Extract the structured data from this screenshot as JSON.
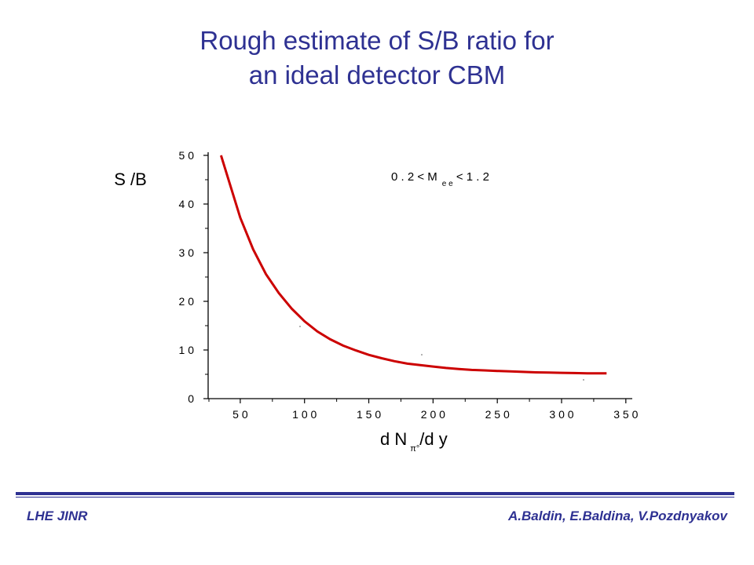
{
  "slide": {
    "title_line1": "Rough estimate of S/B ratio for",
    "title_line2": "an ideal detector CBM",
    "footer_left": "LHE JINR",
    "footer_right": "A.Baldin, E.Baldina, V.Pozdnyakov"
  },
  "colors": {
    "title": "#2e3192",
    "curve": "#cc0000",
    "axis": "#000000"
  },
  "chart_data": {
    "type": "line",
    "title": "",
    "annotation": {
      "text": "0 . 2 < M",
      "subscript": "e e",
      "suffix": " < 1 . 2"
    },
    "ylabel": "S /B",
    "xlabel": {
      "main": "d N",
      "subscript": "π°",
      "suffix": "/d y"
    },
    "xlim": [
      25,
      355
    ],
    "ylim": [
      0,
      50
    ],
    "x_ticks": [
      50,
      100,
      150,
      200,
      250,
      300,
      350
    ],
    "x_tick_labels": [
      "5 0",
      "1 0 0",
      "1 5 0",
      "2 0 0",
      "2 5 0",
      "3 0 0",
      "3 5 0"
    ],
    "y_ticks": [
      0,
      10,
      20,
      30,
      40,
      50
    ],
    "y_tick_labels": [
      "0",
      "1 0",
      "2 0",
      "3 0",
      "4 0",
      "5 0"
    ],
    "grid": false,
    "series": [
      {
        "x": [
          35,
          50,
          60,
          70,
          80,
          90,
          100,
          110,
          120,
          130,
          140,
          150,
          160,
          170,
          180,
          190,
          200,
          210,
          220,
          230,
          240,
          250,
          260,
          270,
          280,
          290,
          300,
          310,
          320,
          335
        ],
        "values": [
          50.0,
          37.2,
          30.7,
          25.6,
          21.7,
          18.5,
          15.9,
          13.8,
          12.2,
          10.9,
          9.9,
          9.0,
          8.3,
          7.7,
          7.2,
          6.9,
          6.6,
          6.3,
          6.1,
          5.9,
          5.8,
          5.7,
          5.6,
          5.5,
          5.4,
          5.35,
          5.3,
          5.25,
          5.2,
          5.2
        ]
      }
    ]
  }
}
